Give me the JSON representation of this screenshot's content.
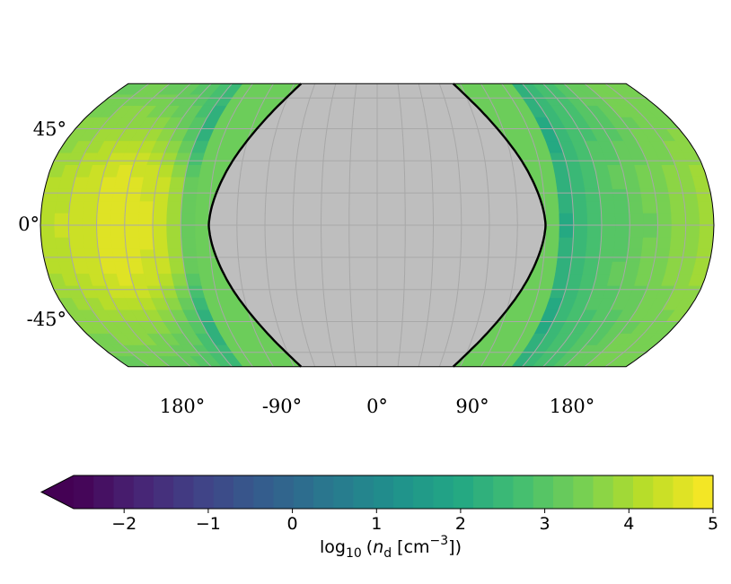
{
  "chart_data": {
    "type": "heatmap",
    "projection": "Robinson",
    "title": "",
    "background_color": "#ffffff",
    "map": {
      "x_ticks": [
        "180°",
        "-90°",
        "0°",
        "90°",
        "180°"
      ],
      "y_ticks": [
        "45°",
        "0°",
        "-45°"
      ],
      "lat_range": [
        -67.5,
        67.5
      ],
      "lon_range": [
        -180,
        180
      ],
      "grid": true,
      "masked_region_color": "#bebebe",
      "masked_region_lon_range": [
        -90,
        90
      ],
      "boundary_line_color": "#000000",
      "field_samples": {
        "description_lons": [
          -180,
          -157.5,
          -135,
          -112.5,
          -101.25,
          -95,
          95,
          101.25,
          112.5,
          135,
          157.5,
          180
        ],
        "lats": [
          -67.5,
          -45,
          -22.5,
          0,
          22.5,
          45,
          67.5
        ],
        "values": [
          [
            3.2,
            3.3,
            3.1,
            2.8,
            2.6,
            2.5,
            2.4,
            2.4,
            2.6,
            3.1,
            3.4,
            3.5
          ],
          [
            3.6,
            3.9,
            3.8,
            3.3,
            2.2,
            1.6,
            1.9,
            2.0,
            2.6,
            3.0,
            3.4,
            3.6
          ],
          [
            4.0,
            4.4,
            4.7,
            4.3,
            3.2,
            2.1,
            2.2,
            2.3,
            2.8,
            3.2,
            3.6,
            3.9
          ],
          [
            4.1,
            4.5,
            4.7,
            4.4,
            3.3,
            1.9,
            1.7,
            2.1,
            2.7,
            3.1,
            3.5,
            3.9
          ],
          [
            4.0,
            4.4,
            4.7,
            4.3,
            3.2,
            2.1,
            2.2,
            2.3,
            2.8,
            3.2,
            3.6,
            3.9
          ],
          [
            3.6,
            3.9,
            3.8,
            3.3,
            2.2,
            1.6,
            1.9,
            2.0,
            2.6,
            3.0,
            3.4,
            3.6
          ],
          [
            3.2,
            3.3,
            3.1,
            2.8,
            2.6,
            2.5,
            2.4,
            2.4,
            2.6,
            3.1,
            3.4,
            3.5
          ]
        ]
      }
    },
    "colorbar": {
      "label": "log₁₀ (nᵈ [cm⁻³])",
      "label_main": "log",
      "label_sub": "10",
      "label_open": "(",
      "label_var": "n",
      "label_var_sub": "d",
      "label_unit": "[cm",
      "label_exp": "−3",
      "label_close": "])",
      "range": [
        -2.6,
        5
      ],
      "ticks": [
        -2,
        -1,
        0,
        1,
        2,
        3,
        4,
        5
      ],
      "tick_labels": [
        "−2",
        "−1",
        "0",
        "1",
        "2",
        "3",
        "4",
        "5"
      ],
      "extend": "min",
      "colormap": "viridis",
      "levels": 32
    }
  }
}
